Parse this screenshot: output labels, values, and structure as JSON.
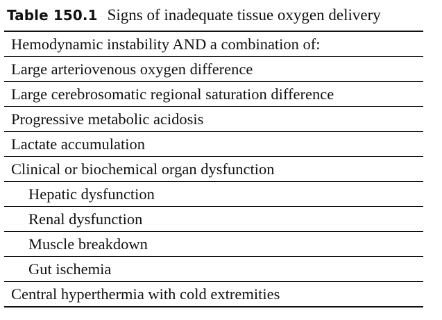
{
  "table": {
    "label": "Table 150.1",
    "title": "Signs of inadequate tissue oxygen delivery",
    "rows": [
      {
        "text": "Hemodynamic instability AND a combination of:"
      },
      {
        "text": "Large arteriovenous oxygen difference"
      },
      {
        "text": "Large cerebrosomatic regional saturation difference"
      },
      {
        "text": "Progressive metabolic acidosis"
      },
      {
        "text": "Lactate accumulation"
      },
      {
        "text": "Clinical or biochemical organ dysfunction"
      },
      {
        "text": "Hepatic dysfunction"
      },
      {
        "text": "Renal dysfunction"
      },
      {
        "text": "Muscle breakdown"
      },
      {
        "text": "Gut ischemia"
      },
      {
        "text": "Central hyperthermia with cold extremities"
      }
    ]
  }
}
